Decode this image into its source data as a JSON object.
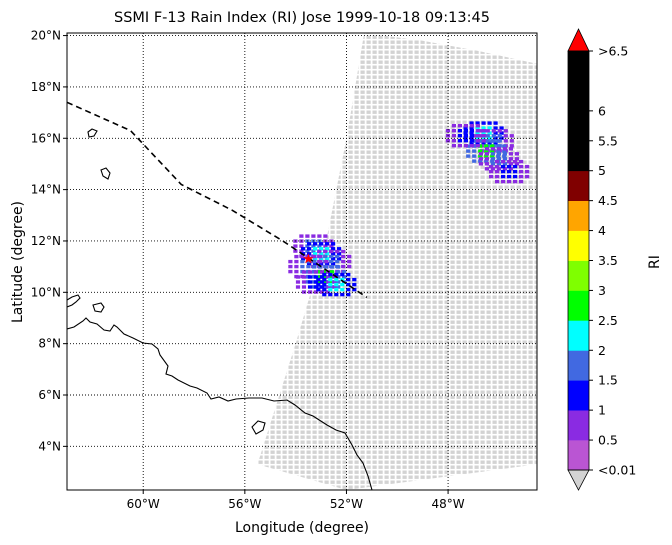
{
  "chart_data": {
    "type": "heatmap",
    "title": "SSMI F-13 Rain Index (RI) Jose 1999-10-18 09:13:45",
    "xlabel": "Longitude (degree)",
    "ylabel": "Latitude (degree)",
    "xlim": [
      -63,
      -44.5
    ],
    "ylim": [
      2.3,
      20.1
    ],
    "x_ticks": [
      {
        "value": -60,
        "label": "60°W"
      },
      {
        "value": -56,
        "label": "56°W"
      },
      {
        "value": -52,
        "label": "52°W"
      },
      {
        "value": -48,
        "label": "48°W"
      }
    ],
    "y_ticks": [
      {
        "value": 4,
        "label": "4°N"
      },
      {
        "value": 6,
        "label": "6°N"
      },
      {
        "value": 8,
        "label": "8°N"
      },
      {
        "value": 10,
        "label": "10°N"
      },
      {
        "value": 12,
        "label": "12°N"
      },
      {
        "value": 14,
        "label": "14°N"
      },
      {
        "value": 16,
        "label": "16°N"
      },
      {
        "value": 18,
        "label": "18°N"
      },
      {
        "value": 20,
        "label": "20°N"
      }
    ],
    "grid": true,
    "grid_style": "dotted",
    "swath": {
      "no_rain_color": "#d3d3d3",
      "left_edge": [
        [
          -55.5,
          3.3
        ],
        [
          -54.0,
          8.0
        ],
        [
          -52.8,
          12.0
        ],
        [
          -52.0,
          16.0
        ],
        [
          -51.3,
          20.1
        ]
      ],
      "right_edge": [
        [
          -44.5,
          3.3
        ],
        [
          -44.5,
          18.9
        ]
      ],
      "top_edge": [
        [
          -51.3,
          20.1
        ],
        [
          -49.0,
          19.8
        ],
        [
          -46.8,
          19.4
        ],
        [
          -44.5,
          18.9
        ]
      ],
      "bottom_edge": [
        [
          -55.5,
          3.3
        ],
        [
          -52.0,
          2.3
        ],
        [
          -44.5,
          2.3
        ]
      ]
    },
    "rain_cells": [
      {
        "lon": -53.3,
        "lat": 11.8,
        "ri": 1.5
      },
      {
        "lon": -53.0,
        "lat": 11.5,
        "ri": 2
      },
      {
        "lon": -52.6,
        "lat": 11.2,
        "ri": 1.5
      },
      {
        "lon": -53.5,
        "lat": 11.0,
        "ri": 1.5
      },
      {
        "lon": -52.8,
        "lat": 10.6,
        "ri": 2.5
      },
      {
        "lon": -53.2,
        "lat": 10.4,
        "ri": 1
      },
      {
        "lon": -52.4,
        "lat": 10.3,
        "ri": 2
      },
      {
        "lon": -46.6,
        "lat": 16.2,
        "ri": 2
      },
      {
        "lon": -46.2,
        "lat": 15.9,
        "ri": 1.5
      },
      {
        "lon": -46.5,
        "lat": 15.5,
        "ri": 2.5
      },
      {
        "lon": -46.0,
        "lat": 15.2,
        "ri": 1.5
      },
      {
        "lon": -47.3,
        "lat": 16.1,
        "ri": 1
      },
      {
        "lon": -45.6,
        "lat": 14.7,
        "ri": 1
      }
    ],
    "track": {
      "style": "dashed",
      "points": [
        [
          -63,
          17.4
        ],
        [
          -60.5,
          16.3
        ],
        [
          -58.5,
          14.2
        ],
        [
          -56.5,
          13.2
        ],
        [
          -54.5,
          12.0
        ],
        [
          -53.0,
          11.0
        ],
        [
          -51.2,
          9.8
        ]
      ],
      "marker": {
        "lon": -53.5,
        "lat": 11.3,
        "color": "#ff0000"
      }
    },
    "colorbar": {
      "label": "RI",
      "extend": "both",
      "under_color": "#d3d3d3",
      "over_color": "#ff0000",
      "bins": [
        {
          "label": "<0.01",
          "color": "#ba55d3"
        },
        {
          "label": "0.5",
          "color": "#8a2be2"
        },
        {
          "label": "1",
          "color": "#0000ff"
        },
        {
          "label": "1.5",
          "color": "#4169e1"
        },
        {
          "label": "2",
          "color": "#00ffff"
        },
        {
          "label": "2.5",
          "color": "#00ff00"
        },
        {
          "label": "3",
          "color": "#7fff00"
        },
        {
          "label": "3.5",
          "color": "#ffff00"
        },
        {
          "label": "4",
          "color": "#ffa500"
        },
        {
          "label": "4.5",
          "color": "#800000"
        },
        {
          "label": "5",
          "color": "#000000"
        },
        {
          "label": "5.5",
          "color": "#000000"
        },
        {
          "label": "6",
          "color": "#000000"
        },
        {
          "label": ">6.5",
          "color": "#000000"
        }
      ]
    }
  }
}
